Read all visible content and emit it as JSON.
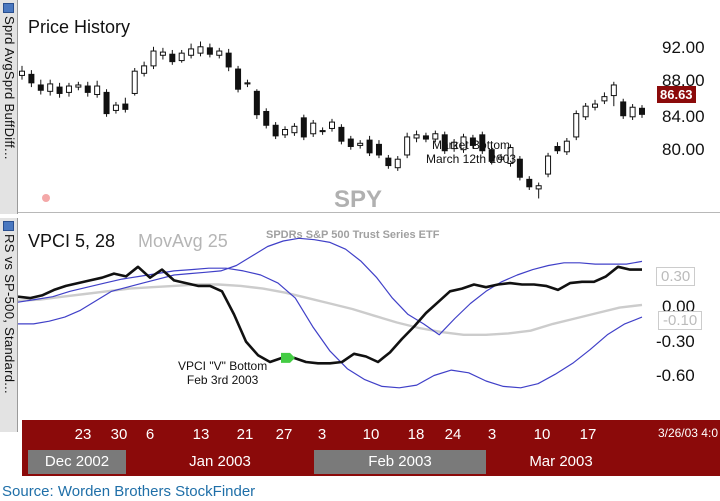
{
  "side_tabs": {
    "top": "Sprd AvgSprd BuffDiff...",
    "bottom": "RS vs SP-500, Standard..."
  },
  "price_panel": {
    "title": "Price History",
    "symbol": "SPY",
    "current_price": "86.63",
    "y_labels": [
      "92.00",
      "88.00",
      "84.00",
      "80.00"
    ],
    "annotation_line1": "Market Bottom",
    "annotation_line2": "March 12th 2003"
  },
  "indicator_panel": {
    "title": "VPCI 5, 28",
    "ma_label": "MovAvg 25",
    "etf_name": "SPDRs S&P 500 Trust Series ETF",
    "ref_top": "0.30",
    "ref_zero": "-0.10",
    "y_labels": [
      "0.00",
      "-0.30",
      "-0.60"
    ],
    "annotation_line1": "VPCI \"V\" Bottom",
    "annotation_line2": "Feb 3rd 2003"
  },
  "date_axis": {
    "days": [
      "23",
      "30",
      "6",
      "13",
      "21",
      "27",
      "3",
      "10",
      "18",
      "24",
      "3",
      "10",
      "17"
    ],
    "months": [
      "Dec 2002",
      "Jan 2003",
      "Feb 2003",
      "Mar 2003"
    ],
    "timestamp": "3/26/03 4:0"
  },
  "source": "Source: Worden Brothers StockFinder",
  "colors": {
    "frame": "#8b0a0a",
    "band": "#4040c8",
    "vpci": "#111111",
    "average": "#cccccc",
    "marker": "#44cc44",
    "source": "#1f6fa8"
  },
  "chart_data": [
    {
      "type": "candlestick",
      "title": "Price History",
      "symbol": "SPY",
      "y_ticks": [
        80,
        84,
        88,
        92
      ],
      "ylim": [
        77.8,
        94.3
      ],
      "last_value": 86.63,
      "annotation": "Market Bottom March 12th 2003",
      "candles": [
        {
          "o": 90.3,
          "c": 90.7,
          "h": 91.2,
          "l": 89.9
        },
        {
          "o": 90.4,
          "c": 89.6,
          "h": 90.8,
          "l": 89.2
        },
        {
          "o": 89.4,
          "c": 88.9,
          "h": 89.9,
          "l": 88.5
        },
        {
          "o": 88.8,
          "c": 89.5,
          "h": 89.9,
          "l": 88.4
        },
        {
          "o": 89.2,
          "c": 88.6,
          "h": 89.6,
          "l": 88.2
        },
        {
          "o": 88.7,
          "c": 89.3,
          "h": 89.6,
          "l": 88.3
        },
        {
          "o": 89.2,
          "c": 89.4,
          "h": 89.7,
          "l": 88.9
        },
        {
          "o": 89.3,
          "c": 88.7,
          "h": 89.7,
          "l": 88.3
        },
        {
          "o": 88.5,
          "c": 89.3,
          "h": 89.8,
          "l": 88.2
        },
        {
          "o": 88.7,
          "c": 86.7,
          "h": 89.0,
          "l": 86.4
        },
        {
          "o": 87.0,
          "c": 87.5,
          "h": 87.8,
          "l": 86.7
        },
        {
          "o": 87.6,
          "c": 87.1,
          "h": 88.2,
          "l": 86.8
        },
        {
          "o": 88.6,
          "c": 90.7,
          "h": 91.0,
          "l": 88.4
        },
        {
          "o": 90.5,
          "c": 91.2,
          "h": 91.6,
          "l": 90.2
        },
        {
          "o": 91.2,
          "c": 92.6,
          "h": 93.0,
          "l": 90.9
        },
        {
          "o": 92.2,
          "c": 92.5,
          "h": 92.9,
          "l": 91.8
        },
        {
          "o": 92.3,
          "c": 91.6,
          "h": 92.7,
          "l": 91.3
        },
        {
          "o": 91.7,
          "c": 92.4,
          "h": 92.7,
          "l": 91.5
        },
        {
          "o": 92.2,
          "c": 92.8,
          "h": 93.3,
          "l": 91.9
        },
        {
          "o": 92.4,
          "c": 93.0,
          "h": 93.5,
          "l": 92.1
        },
        {
          "o": 92.9,
          "c": 92.3,
          "h": 93.3,
          "l": 92.0
        },
        {
          "o": 92.2,
          "c": 92.6,
          "h": 92.9,
          "l": 91.9
        },
        {
          "o": 92.4,
          "c": 91.1,
          "h": 92.8,
          "l": 90.7
        },
        {
          "o": 90.9,
          "c": 89.0,
          "h": 91.2,
          "l": 88.7
        },
        {
          "o": 89.5,
          "c": 89.6,
          "h": 89.9,
          "l": 89.2
        },
        {
          "o": 88.8,
          "c": 86.6,
          "h": 89.0,
          "l": 86.2
        },
        {
          "o": 86.9,
          "c": 85.6,
          "h": 87.2,
          "l": 85.3
        },
        {
          "o": 85.6,
          "c": 84.6,
          "h": 85.9,
          "l": 84.3
        },
        {
          "o": 84.7,
          "c": 85.2,
          "h": 85.5,
          "l": 84.4
        },
        {
          "o": 84.9,
          "c": 85.5,
          "h": 85.8,
          "l": 84.6
        },
        {
          "o": 86.3,
          "c": 84.5,
          "h": 86.6,
          "l": 84.2
        },
        {
          "o": 84.8,
          "c": 85.8,
          "h": 86.1,
          "l": 84.5
        },
        {
          "o": 85.1,
          "c": 85.0,
          "h": 85.4,
          "l": 84.7
        },
        {
          "o": 85.3,
          "c": 85.9,
          "h": 86.2,
          "l": 85.0
        },
        {
          "o": 85.4,
          "c": 84.1,
          "h": 85.7,
          "l": 83.8
        },
        {
          "o": 84.3,
          "c": 83.6,
          "h": 84.6,
          "l": 83.3
        },
        {
          "o": 83.7,
          "c": 83.9,
          "h": 84.2,
          "l": 83.4
        },
        {
          "o": 84.2,
          "c": 83.0,
          "h": 84.6,
          "l": 82.7
        },
        {
          "o": 83.8,
          "c": 82.8,
          "h": 84.2,
          "l": 82.5
        },
        {
          "o": 82.5,
          "c": 81.8,
          "h": 82.8,
          "l": 81.5
        },
        {
          "o": 81.6,
          "c": 82.4,
          "h": 82.7,
          "l": 81.3
        },
        {
          "o": 82.8,
          "c": 84.5,
          "h": 84.9,
          "l": 82.5
        },
        {
          "o": 84.4,
          "c": 84.7,
          "h": 85.1,
          "l": 84.0
        },
        {
          "o": 84.6,
          "c": 84.3,
          "h": 84.9,
          "l": 84.0
        },
        {
          "o": 84.3,
          "c": 84.8,
          "h": 85.1,
          "l": 84.0
        },
        {
          "o": 84.7,
          "c": 83.2,
          "h": 85.0,
          "l": 82.9
        },
        {
          "o": 83.4,
          "c": 84.0,
          "h": 84.3,
          "l": 83.1
        },
        {
          "o": 83.3,
          "c": 84.5,
          "h": 84.8,
          "l": 83.0
        },
        {
          "o": 84.4,
          "c": 83.7,
          "h": 84.7,
          "l": 83.4
        },
        {
          "o": 84.7,
          "c": 83.2,
          "h": 85.0,
          "l": 82.9
        },
        {
          "o": 83.3,
          "c": 82.2,
          "h": 83.6,
          "l": 81.9
        },
        {
          "o": 82.4,
          "c": 82.6,
          "h": 82.9,
          "l": 82.1
        },
        {
          "o": 82.0,
          "c": 83.5,
          "h": 83.8,
          "l": 81.7
        },
        {
          "o": 82.4,
          "c": 80.7,
          "h": 82.7,
          "l": 80.4
        },
        {
          "o": 80.5,
          "c": 79.8,
          "h": 80.8,
          "l": 79.5
        },
        {
          "o": 79.6,
          "c": 79.9,
          "h": 80.2,
          "l": 78.7
        },
        {
          "o": 81.0,
          "c": 82.7,
          "h": 83.0,
          "l": 80.7
        },
        {
          "o": 83.6,
          "c": 83.2,
          "h": 84.0,
          "l": 82.9
        },
        {
          "o": 83.1,
          "c": 84.1,
          "h": 84.4,
          "l": 82.8
        },
        {
          "o": 84.5,
          "c": 86.7,
          "h": 87.0,
          "l": 84.2
        },
        {
          "o": 86.4,
          "c": 87.4,
          "h": 87.7,
          "l": 86.1
        },
        {
          "o": 87.3,
          "c": 87.6,
          "h": 88.0,
          "l": 87.0
        },
        {
          "o": 87.9,
          "c": 88.3,
          "h": 88.7,
          "l": 87.6
        },
        {
          "o": 88.4,
          "c": 89.4,
          "h": 89.7,
          "l": 87.4
        },
        {
          "o": 87.8,
          "c": 86.5,
          "h": 88.1,
          "l": 86.2
        },
        {
          "o": 86.4,
          "c": 87.3,
          "h": 87.6,
          "l": 86.1
        },
        {
          "o": 87.2,
          "c": 86.63,
          "h": 87.5,
          "l": 86.3
        }
      ]
    },
    {
      "type": "line",
      "title": "VPCI 5, 28",
      "moving_average_label": "MovAvg 25",
      "y_ticks": [
        -0.6,
        -0.3,
        0.0,
        0.3
      ],
      "ylim": [
        -0.78,
        0.53
      ],
      "reference_values": [
        0.3,
        -0.1
      ],
      "annotation": "VPCI \"V\" Bottom Feb 3rd 2003",
      "series": [
        {
          "color": "#111111",
          "values": [
            -0.02,
            -0.03,
            -0.01,
            0.03,
            0.06,
            0.08,
            0.1,
            0.12,
            0.15,
            0.13,
            0.2,
            0.12,
            0.18,
            0.1,
            0.08,
            0.06,
            0.06,
            0.02,
            -0.15,
            -0.35,
            -0.45,
            -0.5,
            -0.47,
            -0.47,
            -0.5,
            -0.51,
            -0.51,
            -0.5,
            -0.44,
            -0.46,
            -0.5,
            -0.43,
            -0.33,
            -0.24,
            -0.14,
            -0.06,
            0.02,
            0.04,
            0.07,
            0.05,
            0.07,
            0.08,
            0.07,
            0.07,
            0.06,
            0.03,
            0.08,
            0.09,
            0.09,
            0.13,
            0.2,
            0.18,
            0.18
          ]
        },
        {
          "color": "#4040c8",
          "values": [
            -0.22,
            -0.22,
            -0.2,
            -0.17,
            -0.12,
            -0.05,
            0.02,
            0.05,
            0.08,
            0.11,
            0.14,
            0.15,
            0.16,
            0.17,
            0.21,
            0.28,
            0.35,
            0.39,
            0.41,
            0.4,
            0.38,
            0.33,
            0.24,
            0.12,
            -0.03,
            -0.15,
            -0.22,
            -0.3,
            -0.18,
            -0.07,
            0.02,
            0.09,
            0.14,
            0.18,
            0.21,
            0.23,
            0.23,
            0.22,
            0.22,
            0.22,
            0.24
          ]
        },
        {
          "color": "#4040c8",
          "values": [
            -0.06,
            -0.04,
            -0.02,
            0.02,
            0.05,
            0.08,
            0.11,
            0.13,
            0.15,
            0.17,
            0.18,
            0.19,
            0.19,
            0.17,
            0.14,
            0.08,
            -0.03,
            -0.24,
            -0.42,
            -0.55,
            -0.63,
            -0.68,
            -0.69,
            -0.67,
            -0.6,
            -0.56,
            -0.58,
            -0.64,
            -0.68,
            -0.69,
            -0.66,
            -0.59,
            -0.51,
            -0.41,
            -0.3,
            -0.22,
            -0.17
          ]
        },
        {
          "color": "#cccccc",
          "values": [
            -0.05,
            -0.04,
            -0.02,
            0.0,
            0.02,
            0.04,
            0.05,
            0.06,
            0.07,
            0.07,
            0.06,
            0.04,
            0.01,
            -0.03,
            -0.07,
            -0.11,
            -0.16,
            -0.21,
            -0.25,
            -0.28,
            -0.3,
            -0.3,
            -0.29,
            -0.27,
            -0.22,
            -0.18,
            -0.14,
            -0.1,
            -0.08
          ]
        }
      ]
    }
  ]
}
